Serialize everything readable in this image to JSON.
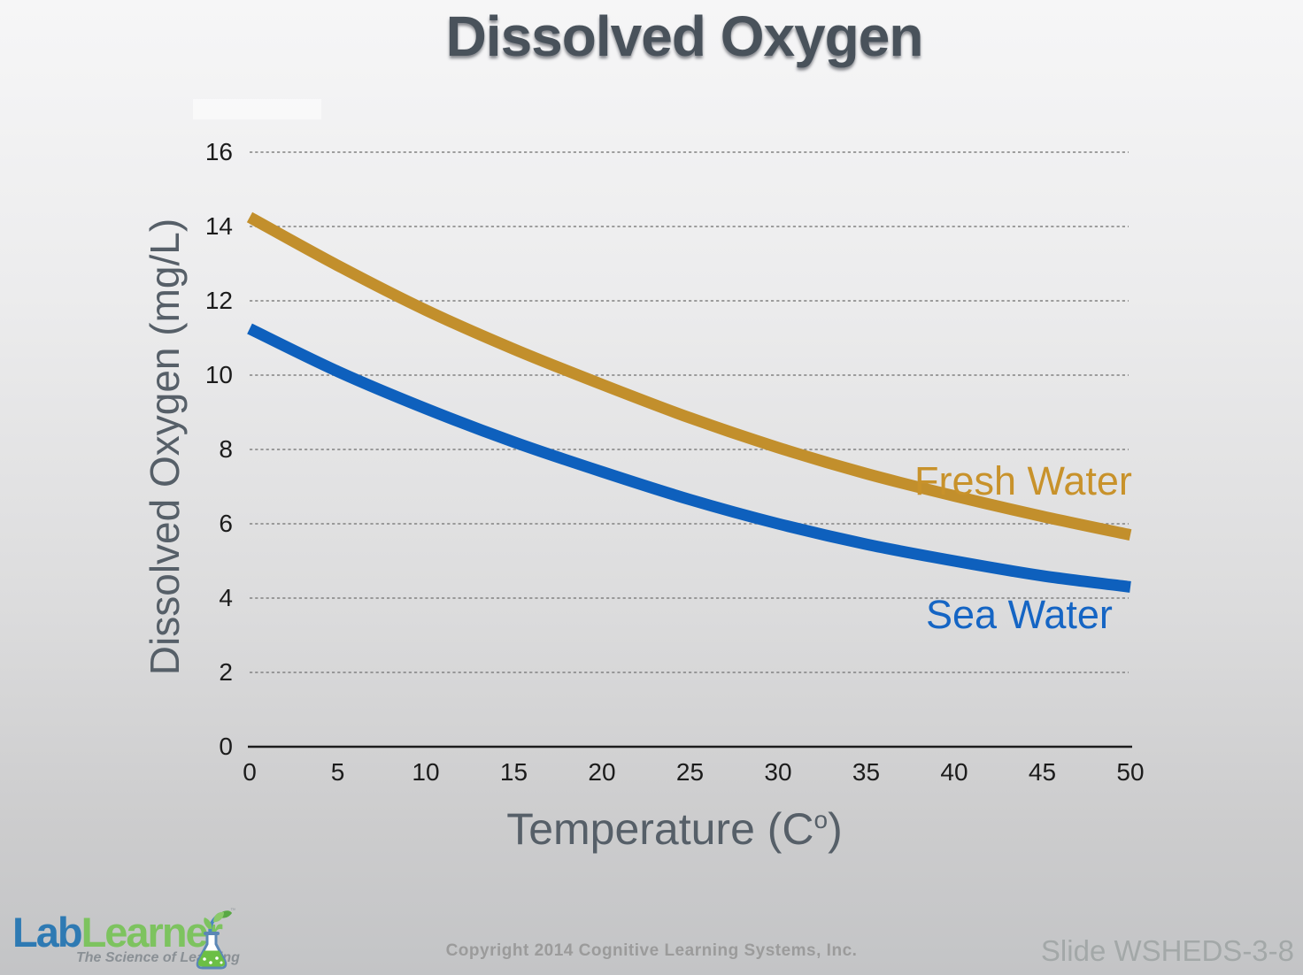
{
  "slide": {
    "title": "Dissolved Oxygen",
    "background_top_color": "#f6f6f7",
    "background_bottom_color": "#c3c4c6",
    "title_color": "#49525b"
  },
  "chart_data": {
    "type": "line",
    "title": "Dissolved Oxygen",
    "xlabel": "Temperature (Cᵒ)",
    "xlabel_display": {
      "pre": "Temperature (C",
      "sup": "o",
      "post": ")"
    },
    "ylabel": "Dissolved Oxygen (mg/L)",
    "x": [
      0,
      5,
      10,
      15,
      20,
      25,
      30,
      35,
      40,
      45,
      50
    ],
    "series": [
      {
        "name": "Fresh Water",
        "color": "#c28f2c",
        "label_color": "#c8922b",
        "values": [
          14.25,
          12.95,
          11.75,
          10.7,
          9.75,
          8.85,
          8.05,
          7.35,
          6.75,
          6.2,
          5.7
        ]
      },
      {
        "name": "Sea Water",
        "color": "#0e60bd",
        "label_color": "#1565c4",
        "values": [
          11.25,
          10.1,
          9.1,
          8.2,
          7.4,
          6.65,
          6.0,
          5.45,
          5.0,
          4.6,
          4.3
        ]
      }
    ],
    "xlim": [
      0,
      50
    ],
    "ylim": [
      0,
      16
    ],
    "x_ticks": [
      0,
      5,
      10,
      15,
      20,
      25,
      30,
      35,
      40,
      45,
      50
    ],
    "y_ticks": [
      0,
      2,
      4,
      6,
      8,
      10,
      12,
      14,
      16
    ],
    "grid": "horizontal dashed gridlines at every y tick above 0",
    "grid_color": "#828282",
    "axis_color": "#1c1c1c",
    "tick_label_color": "#1c1c1c",
    "axis_title_color": "#565f68",
    "legend_position": "inline labels next to curve ends"
  },
  "footer": {
    "logo": {
      "word_lab": "Lab",
      "word_learner": "Learner",
      "lab_color": "#2e7ab3",
      "learner_color": "#7dc35f",
      "tagline": "The Science of Learning",
      "trademark": "™"
    },
    "copyright": "Copyright 2014 Cognitive Learning Systems, Inc.",
    "slide_label": "Slide WSHEDS-3-8"
  }
}
